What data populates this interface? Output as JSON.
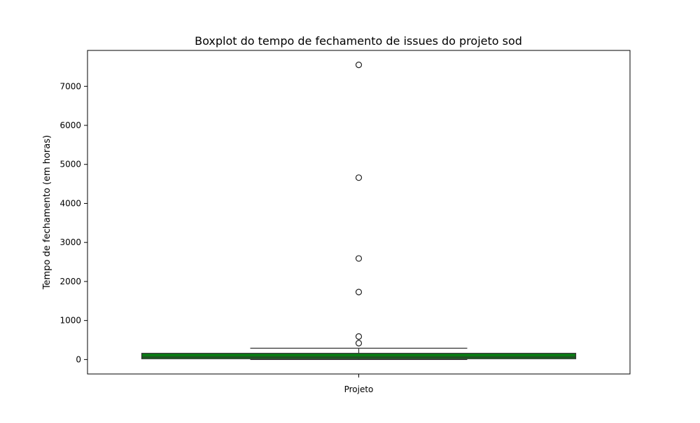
{
  "chart_data": {
    "type": "boxplot",
    "title": "Boxplot do tempo de fechamento de issues do projeto sod",
    "xlabel": "",
    "ylabel": "Tempo de fechamento (em horas)",
    "categories": [
      "Projeto"
    ],
    "ylim": [
      -370,
      7920
    ],
    "yticks": [
      0,
      1000,
      2000,
      3000,
      4000,
      5000,
      6000,
      7000
    ],
    "ytick_labels": [
      "0",
      "1000",
      "2000",
      "3000",
      "4000",
      "5000",
      "6000",
      "7000"
    ],
    "box": {
      "q1": 20,
      "median": 60,
      "q3": 160,
      "whisker_low": 0,
      "whisker_high": 290
    },
    "outliers": [
      7550,
      4660,
      2590,
      1730,
      590,
      420
    ],
    "grid": false,
    "colors": {
      "box_fill": "#0a7a14",
      "edge": "#333333",
      "outlier_edge": "#222222"
    }
  }
}
